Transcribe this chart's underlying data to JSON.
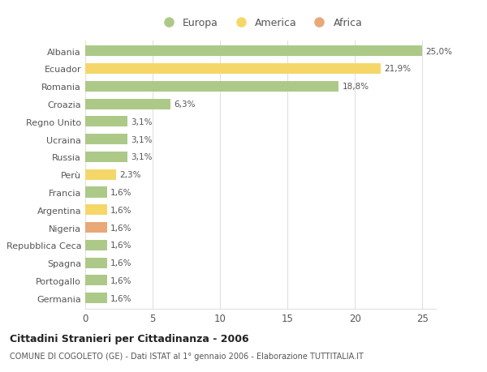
{
  "categories": [
    "Albania",
    "Ecuador",
    "Romania",
    "Croazia",
    "Regno Unito",
    "Ucraina",
    "Russia",
    "Perù",
    "Francia",
    "Argentina",
    "Nigeria",
    "Repubblica Ceca",
    "Spagna",
    "Portogallo",
    "Germania"
  ],
  "values": [
    25.0,
    21.9,
    18.8,
    6.3,
    3.1,
    3.1,
    3.1,
    2.3,
    1.6,
    1.6,
    1.6,
    1.6,
    1.6,
    1.6,
    1.6
  ],
  "labels": [
    "25,0%",
    "21,9%",
    "18,8%",
    "6,3%",
    "3,1%",
    "3,1%",
    "3,1%",
    "2,3%",
    "1,6%",
    "1,6%",
    "1,6%",
    "1,6%",
    "1,6%",
    "1,6%",
    "1,6%"
  ],
  "continents": [
    "Europa",
    "America",
    "Europa",
    "Europa",
    "Europa",
    "Europa",
    "Europa",
    "America",
    "Europa",
    "America",
    "Africa",
    "Europa",
    "Europa",
    "Europa",
    "Europa"
  ],
  "colors": {
    "Europa": "#adc988",
    "America": "#f5d769",
    "Africa": "#e8a878"
  },
  "title": "Cittadini Stranieri per Cittadinanza - 2006",
  "subtitle": "COMUNE DI COGOLETO (GE) - Dati ISTAT al 1° gennaio 2006 - Elaborazione TUTTITALIA.IT",
  "xlim": [
    0,
    26
  ],
  "xticks": [
    0,
    5,
    10,
    15,
    20,
    25
  ],
  "background_color": "#ffffff",
  "grid_color": "#e0e0e0",
  "bar_height": 0.6,
  "figsize": [
    6.0,
    4.6
  ],
  "dpi": 100
}
